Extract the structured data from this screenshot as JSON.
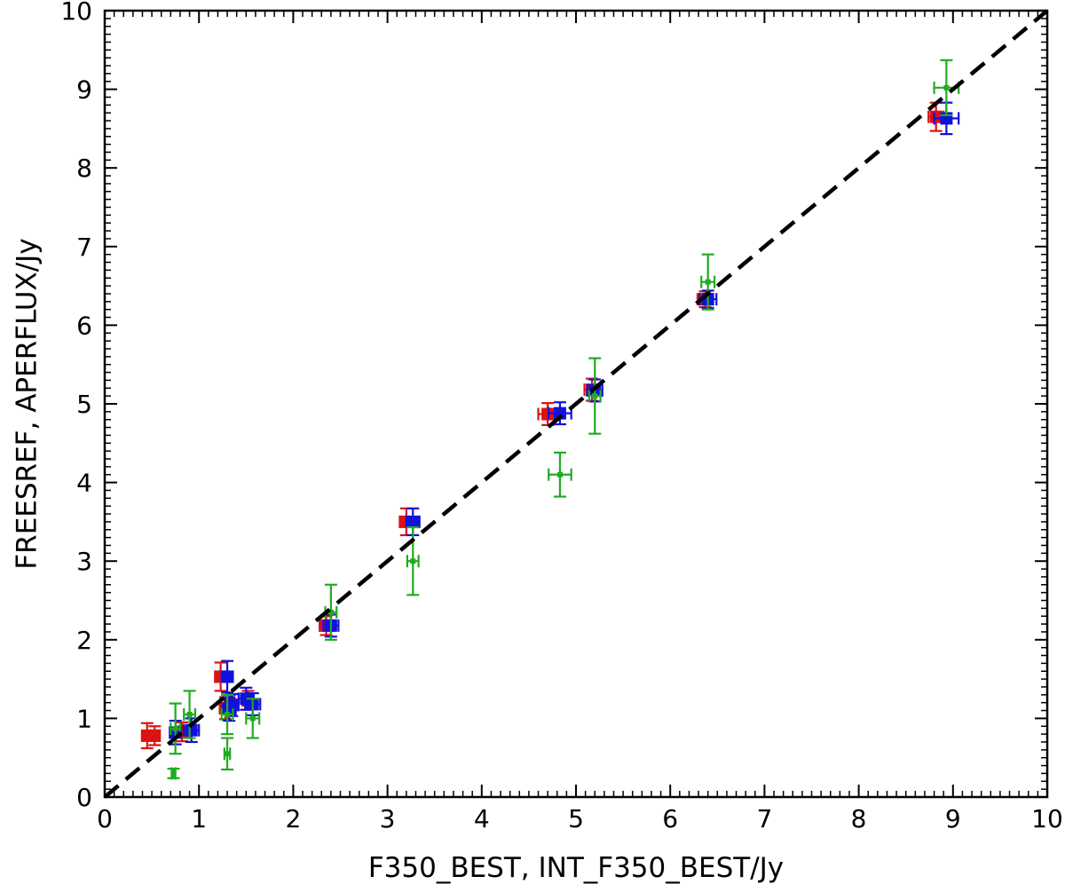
{
  "chart_data": {
    "type": "scatter",
    "title": "",
    "xlabel": "F350_BEST, INT_F350_BEST/Jy",
    "ylabel": "FREESREF, APERFLUX/Jy",
    "xlim": [
      0,
      10
    ],
    "ylim": [
      0,
      10
    ],
    "xticks": [
      "0",
      "1",
      "2",
      "3",
      "4",
      "5",
      "6",
      "7",
      "8",
      "9",
      "10"
    ],
    "yticks": [
      "0",
      "1",
      "2",
      "3",
      "4",
      "5",
      "6",
      "7",
      "8",
      "9",
      "10"
    ],
    "grid": false,
    "legend": "none",
    "reference_line": {
      "style": "dashed",
      "color": "#000000",
      "x": [
        0,
        10
      ],
      "y": [
        0,
        10
      ]
    },
    "series": [
      {
        "color": "#dd1111",
        "marker": "square",
        "points": [
          {
            "x": 0.45,
            "y": 0.78,
            "xerr": 0.05,
            "yerr": 0.16
          },
          {
            "x": 0.53,
            "y": 0.78,
            "xerr": 0.05,
            "yerr": 0.12
          },
          {
            "x": 0.82,
            "y": 0.83,
            "xerr": 0.06,
            "yerr": 0.12
          },
          {
            "x": 1.23,
            "y": 1.53,
            "xerr": 0.06,
            "yerr": 0.18
          },
          {
            "x": 1.28,
            "y": 1.13,
            "xerr": 0.06,
            "yerr": 0.14
          },
          {
            "x": 1.33,
            "y": 1.18,
            "xerr": 0.06,
            "yerr": 0.12
          },
          {
            "x": 1.52,
            "y": 1.23,
            "xerr": 0.06,
            "yerr": 0.12
          },
          {
            "x": 2.35,
            "y": 2.18,
            "xerr": 0.07,
            "yerr": 0.12
          },
          {
            "x": 3.2,
            "y": 3.5,
            "xerr": 0.07,
            "yerr": 0.17
          },
          {
            "x": 4.7,
            "y": 4.87,
            "xerr": 0.1,
            "yerr": 0.14
          },
          {
            "x": 5.17,
            "y": 5.18,
            "xerr": 0.08,
            "yerr": 0.14
          },
          {
            "x": 6.37,
            "y": 6.33,
            "xerr": 0.08,
            "yerr": 0.1
          },
          {
            "x": 8.82,
            "y": 8.65,
            "xerr": 0.08,
            "yerr": 0.18
          }
        ]
      },
      {
        "color": "#1111dd",
        "marker": "square",
        "points": [
          {
            "x": 0.75,
            "y": 0.82,
            "xerr": 0.06,
            "yerr": 0.15
          },
          {
            "x": 0.92,
            "y": 0.85,
            "xerr": 0.08,
            "yerr": 0.15
          },
          {
            "x": 1.3,
            "y": 1.53,
            "xerr": 0.06,
            "yerr": 0.2
          },
          {
            "x": 1.32,
            "y": 1.12,
            "xerr": 0.07,
            "yerr": 0.15
          },
          {
            "x": 1.35,
            "y": 1.17,
            "xerr": 0.07,
            "yerr": 0.14
          },
          {
            "x": 1.5,
            "y": 1.25,
            "xerr": 0.08,
            "yerr": 0.14
          },
          {
            "x": 1.57,
            "y": 1.18,
            "xerr": 0.08,
            "yerr": 0.14
          },
          {
            "x": 2.4,
            "y": 2.18,
            "xerr": 0.08,
            "yerr": 0.14
          },
          {
            "x": 3.27,
            "y": 3.5,
            "xerr": 0.07,
            "yerr": 0.17
          },
          {
            "x": 4.83,
            "y": 4.88,
            "xerr": 0.12,
            "yerr": 0.14
          },
          {
            "x": 5.2,
            "y": 5.17,
            "xerr": 0.08,
            "yerr": 0.14
          },
          {
            "x": 6.4,
            "y": 6.33,
            "xerr": 0.09,
            "yerr": 0.11
          },
          {
            "x": 8.93,
            "y": 8.63,
            "xerr": 0.13,
            "yerr": 0.2
          }
        ]
      },
      {
        "color": "#22aa22",
        "marker": "point",
        "points": [
          {
            "x": 0.73,
            "y": 0.3,
            "xerr": 0.02,
            "yerr": 0.06
          },
          {
            "x": 0.75,
            "y": 0.87,
            "xerr": 0.05,
            "yerr": 0.32
          },
          {
            "x": 0.9,
            "y": 1.05,
            "xerr": 0.06,
            "yerr": 0.3
          },
          {
            "x": 1.3,
            "y": 0.55,
            "xerr": 0.03,
            "yerr": 0.2
          },
          {
            "x": 1.3,
            "y": 1.05,
            "xerr": 0.06,
            "yerr": 0.25
          },
          {
            "x": 1.57,
            "y": 1.0,
            "xerr": 0.07,
            "yerr": 0.25
          },
          {
            "x": 2.4,
            "y": 2.35,
            "xerr": 0.06,
            "yerr": 0.35
          },
          {
            "x": 3.27,
            "y": 3.0,
            "xerr": 0.06,
            "yerr": 0.43
          },
          {
            "x": 4.83,
            "y": 4.1,
            "xerr": 0.12,
            "yerr": 0.28
          },
          {
            "x": 5.2,
            "y": 5.1,
            "xerr": 0.06,
            "yerr": 0.48
          },
          {
            "x": 6.4,
            "y": 6.55,
            "xerr": 0.07,
            "yerr": 0.35
          },
          {
            "x": 8.93,
            "y": 9.02,
            "xerr": 0.13,
            "yerr": 0.35
          }
        ]
      }
    ]
  }
}
